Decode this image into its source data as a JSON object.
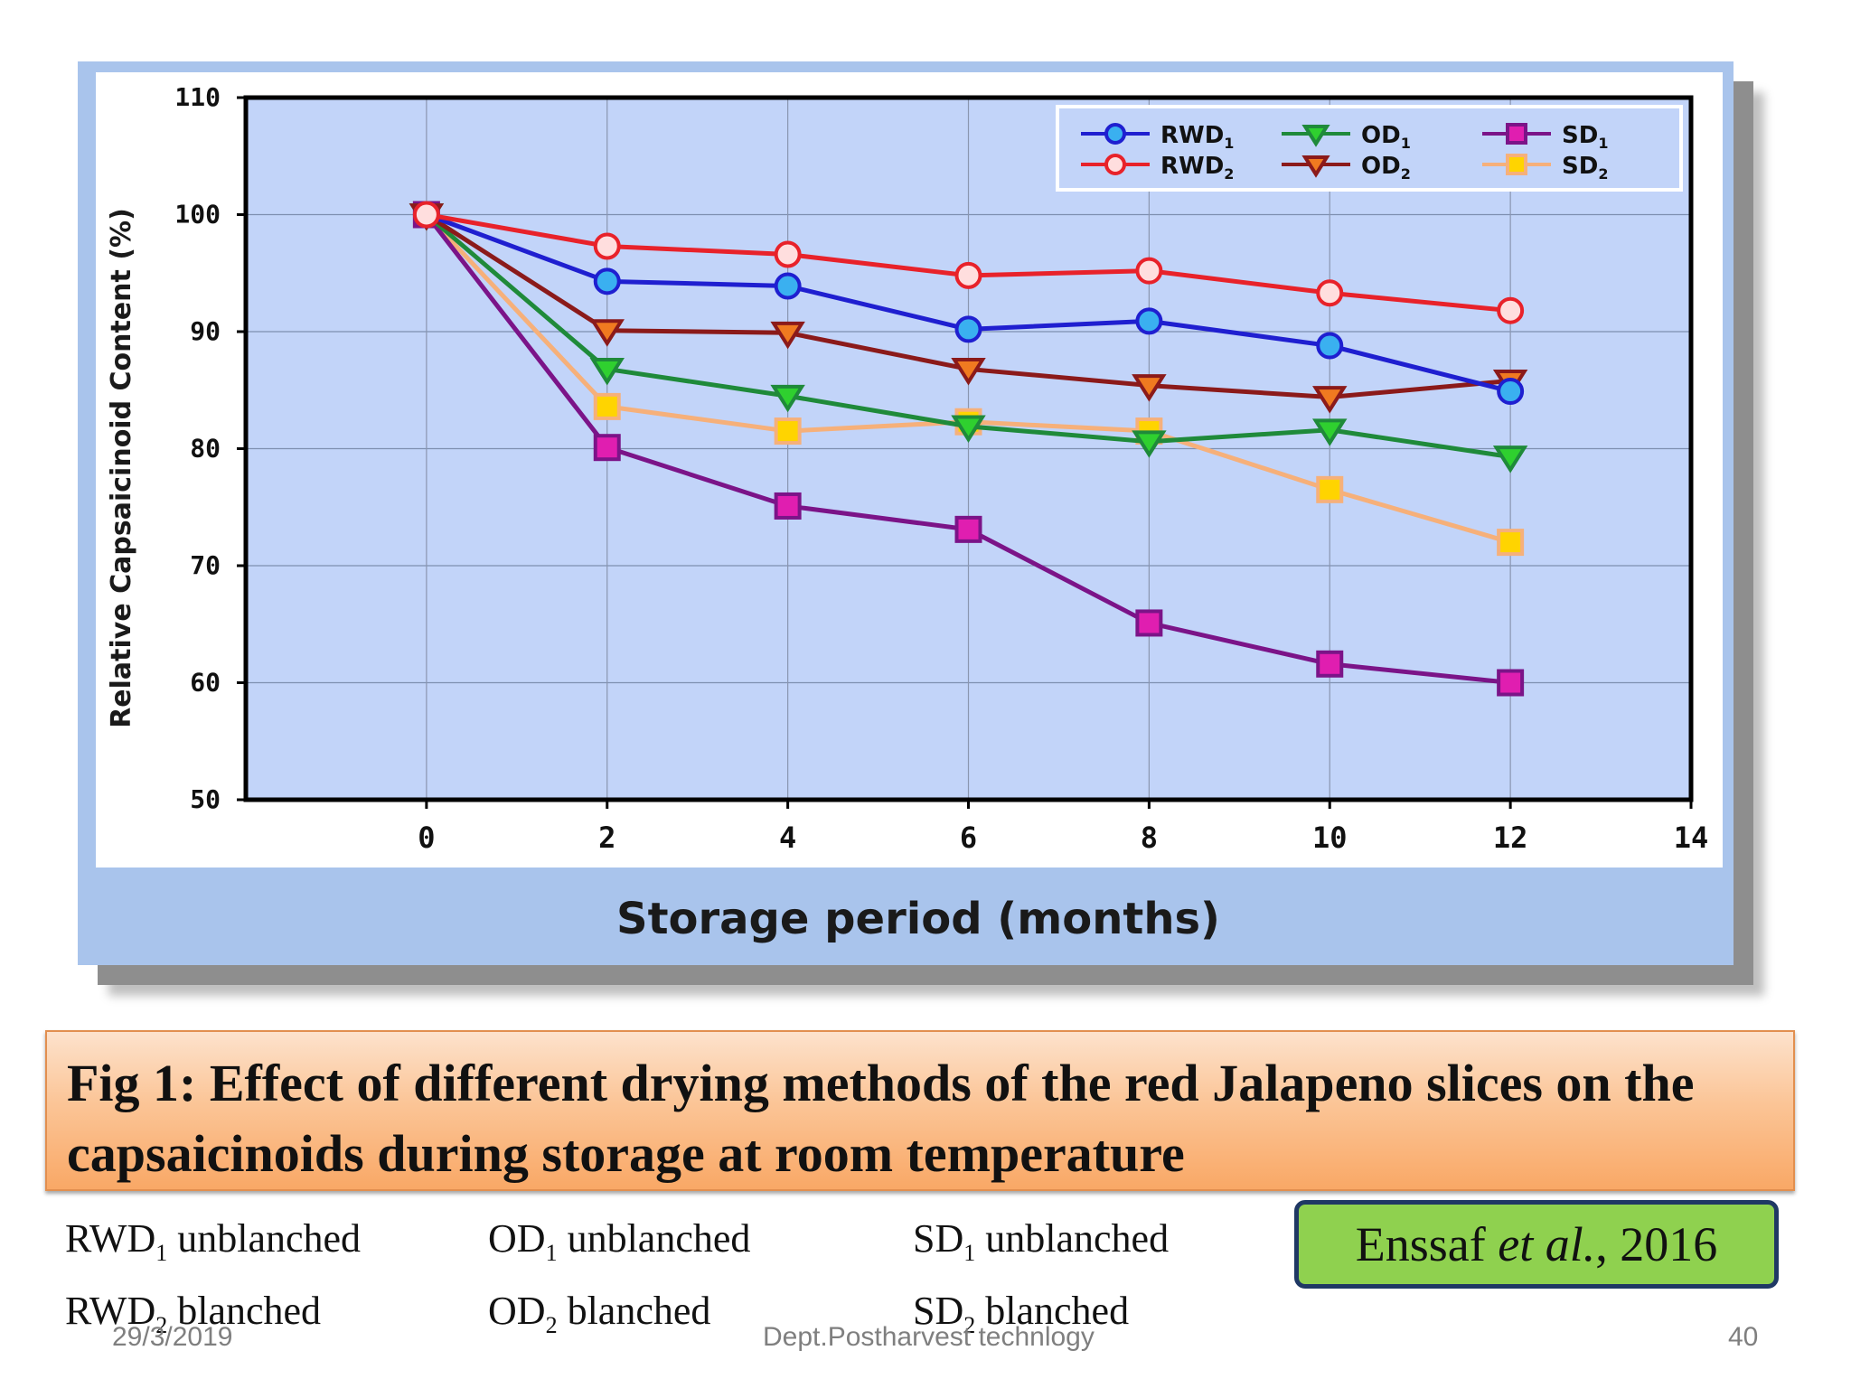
{
  "chart_data": {
    "type": "line",
    "title": "",
    "xlabel": "Storage period (months)",
    "ylabel": "Relative Capsaicinoid Content (%)",
    "xlim": [
      -2,
      14
    ],
    "ylim": [
      50,
      110
    ],
    "x_ticks": [
      "0",
      "2",
      "4",
      "6",
      "8",
      "10",
      "12",
      "14"
    ],
    "y_ticks": [
      "50",
      "60",
      "70",
      "80",
      "90",
      "100",
      "110"
    ],
    "grid": true,
    "legend_position": "top-right",
    "x": [
      0,
      2,
      4,
      6,
      8,
      10,
      12
    ],
    "series": [
      {
        "name": "RWD1",
        "label": "RWD",
        "sub": "1",
        "color": "#1f1fd0",
        "fill": "#3ab0f0",
        "marker": "circle",
        "values": [
          100,
          94.3,
          93.9,
          90.2,
          90.9,
          88.8,
          84.9
        ]
      },
      {
        "name": "RWD2",
        "label": "RWD",
        "sub": "2",
        "color": "#e8222a",
        "fill": "#ffdede",
        "marker": "circle",
        "values": [
          100,
          97.3,
          96.6,
          94.8,
          95.2,
          93.3,
          91.8
        ]
      },
      {
        "name": "OD1",
        "label": "OD",
        "sub": "1",
        "color": "#1f8a3a",
        "fill": "#2fd02f",
        "marker": "triangle-down",
        "values": [
          100,
          86.8,
          84.5,
          81.9,
          80.6,
          81.6,
          79.3
        ]
      },
      {
        "name": "OD2",
        "label": "OD",
        "sub": "2",
        "color": "#8b1a1a",
        "fill": "#f07a20",
        "marker": "triangle-down",
        "values": [
          100,
          90.1,
          89.9,
          86.8,
          85.4,
          84.4,
          85.8
        ]
      },
      {
        "name": "SD1",
        "label": "SD",
        "sub": "1",
        "color": "#7b1488",
        "fill": "#e01eb0",
        "marker": "square",
        "values": [
          100,
          80.1,
          75.1,
          73.1,
          65.1,
          61.6,
          60.0
        ]
      },
      {
        "name": "SD2",
        "label": "SD",
        "sub": "2",
        "color": "#f6b07a",
        "fill": "#ffd400",
        "marker": "square",
        "values": [
          100,
          83.6,
          81.5,
          82.3,
          81.5,
          76.5,
          72.0
        ]
      }
    ]
  },
  "caption": "Fig 1: Effect of different drying methods of the red Jalapeno slices on the capsaicinoids during storage at room temperature",
  "notes": [
    {
      "method": "RWD",
      "sub": "1",
      "desc": "unblanched"
    },
    {
      "method": "OD",
      "sub": "1",
      "desc": "unblanched"
    },
    {
      "method": "SD",
      "sub": "1",
      "desc": "unblanched"
    },
    {
      "method": "RWD",
      "sub": "2",
      "desc": "blanched"
    },
    {
      "method": "OD",
      "sub": "2",
      "desc": "blanched"
    },
    {
      "method": "SD",
      "sub": "2",
      "desc": "blanched"
    }
  ],
  "citation": {
    "author": "Enssaf",
    "etal": "et al.",
    "year": ", 2016"
  },
  "footer": {
    "date": "29/3/2019",
    "dept": "Dept.Postharvest technlogy",
    "page": "40"
  }
}
